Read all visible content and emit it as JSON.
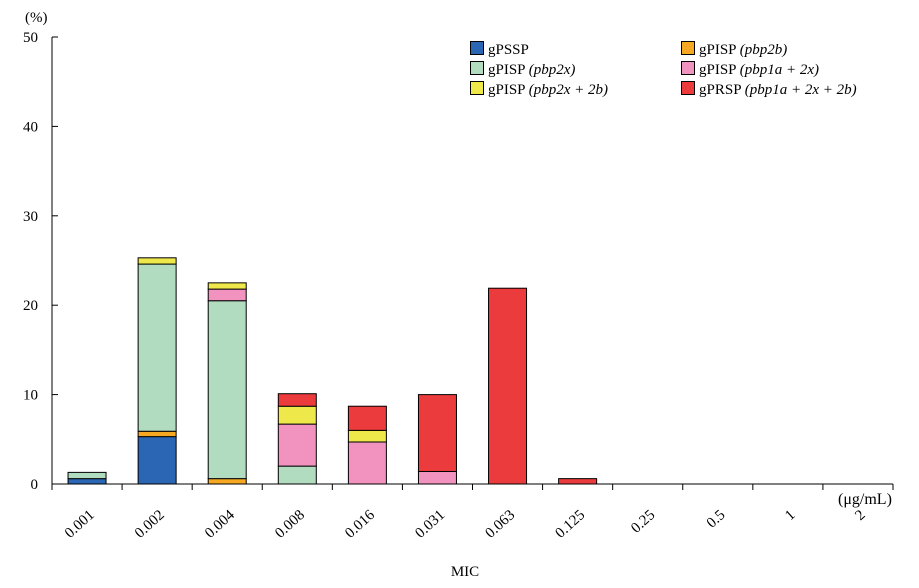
{
  "chart_data": {
    "type": "bar",
    "stacked": true,
    "xlabel": "MIC",
    "ylabel": "(%)",
    "x_unit": "(μg/mL)",
    "ylim": [
      0,
      50
    ],
    "yticks": [
      0,
      10,
      20,
      30,
      40,
      50
    ],
    "categories": [
      "0.001",
      "0.002",
      "0.004",
      "0.008",
      "0.016",
      "0.031",
      "0.063",
      "0.125",
      "0.25",
      "0.5",
      "1",
      "2"
    ],
    "legend_position": "top-right",
    "series": [
      {
        "name": "gPSSP",
        "name_detail": "",
        "color": "#2a66b4",
        "values": [
          0.6,
          5.3,
          0,
          0,
          0,
          0,
          0,
          0,
          0,
          0,
          0,
          0
        ]
      },
      {
        "name": "gPISP",
        "name_detail": "(pbp2b)",
        "color": "#f6a823",
        "values": [
          0,
          0.6,
          0.6,
          0,
          0,
          0,
          0,
          0,
          0,
          0,
          0,
          0
        ]
      },
      {
        "name": "gPISP",
        "name_detail": "(pbp2x)",
        "color": "#b1dcc0",
        "values": [
          0.7,
          18.7,
          19.9,
          2.0,
          0,
          0,
          0,
          0,
          0,
          0,
          0,
          0
        ]
      },
      {
        "name": "gPISP",
        "name_detail": "(pbp1a + 2x)",
        "color": "#f293bf",
        "values": [
          0,
          0,
          1.3,
          4.7,
          4.7,
          1.4,
          0,
          0,
          0,
          0,
          0,
          0
        ]
      },
      {
        "name": "gPISP",
        "name_detail": "(pbp2x + 2b)",
        "color": "#eee84a",
        "values": [
          0,
          0.7,
          0.7,
          2.0,
          1.3,
          0,
          0,
          0,
          0,
          0,
          0,
          0
        ]
      },
      {
        "name": "gPRSP",
        "name_detail": "(pbp1a + 2x + 2b)",
        "color": "#ec3b3d",
        "values": [
          0,
          0,
          0,
          1.4,
          2.7,
          8.6,
          21.9,
          0.6,
          0,
          0,
          0,
          0
        ]
      }
    ]
  }
}
